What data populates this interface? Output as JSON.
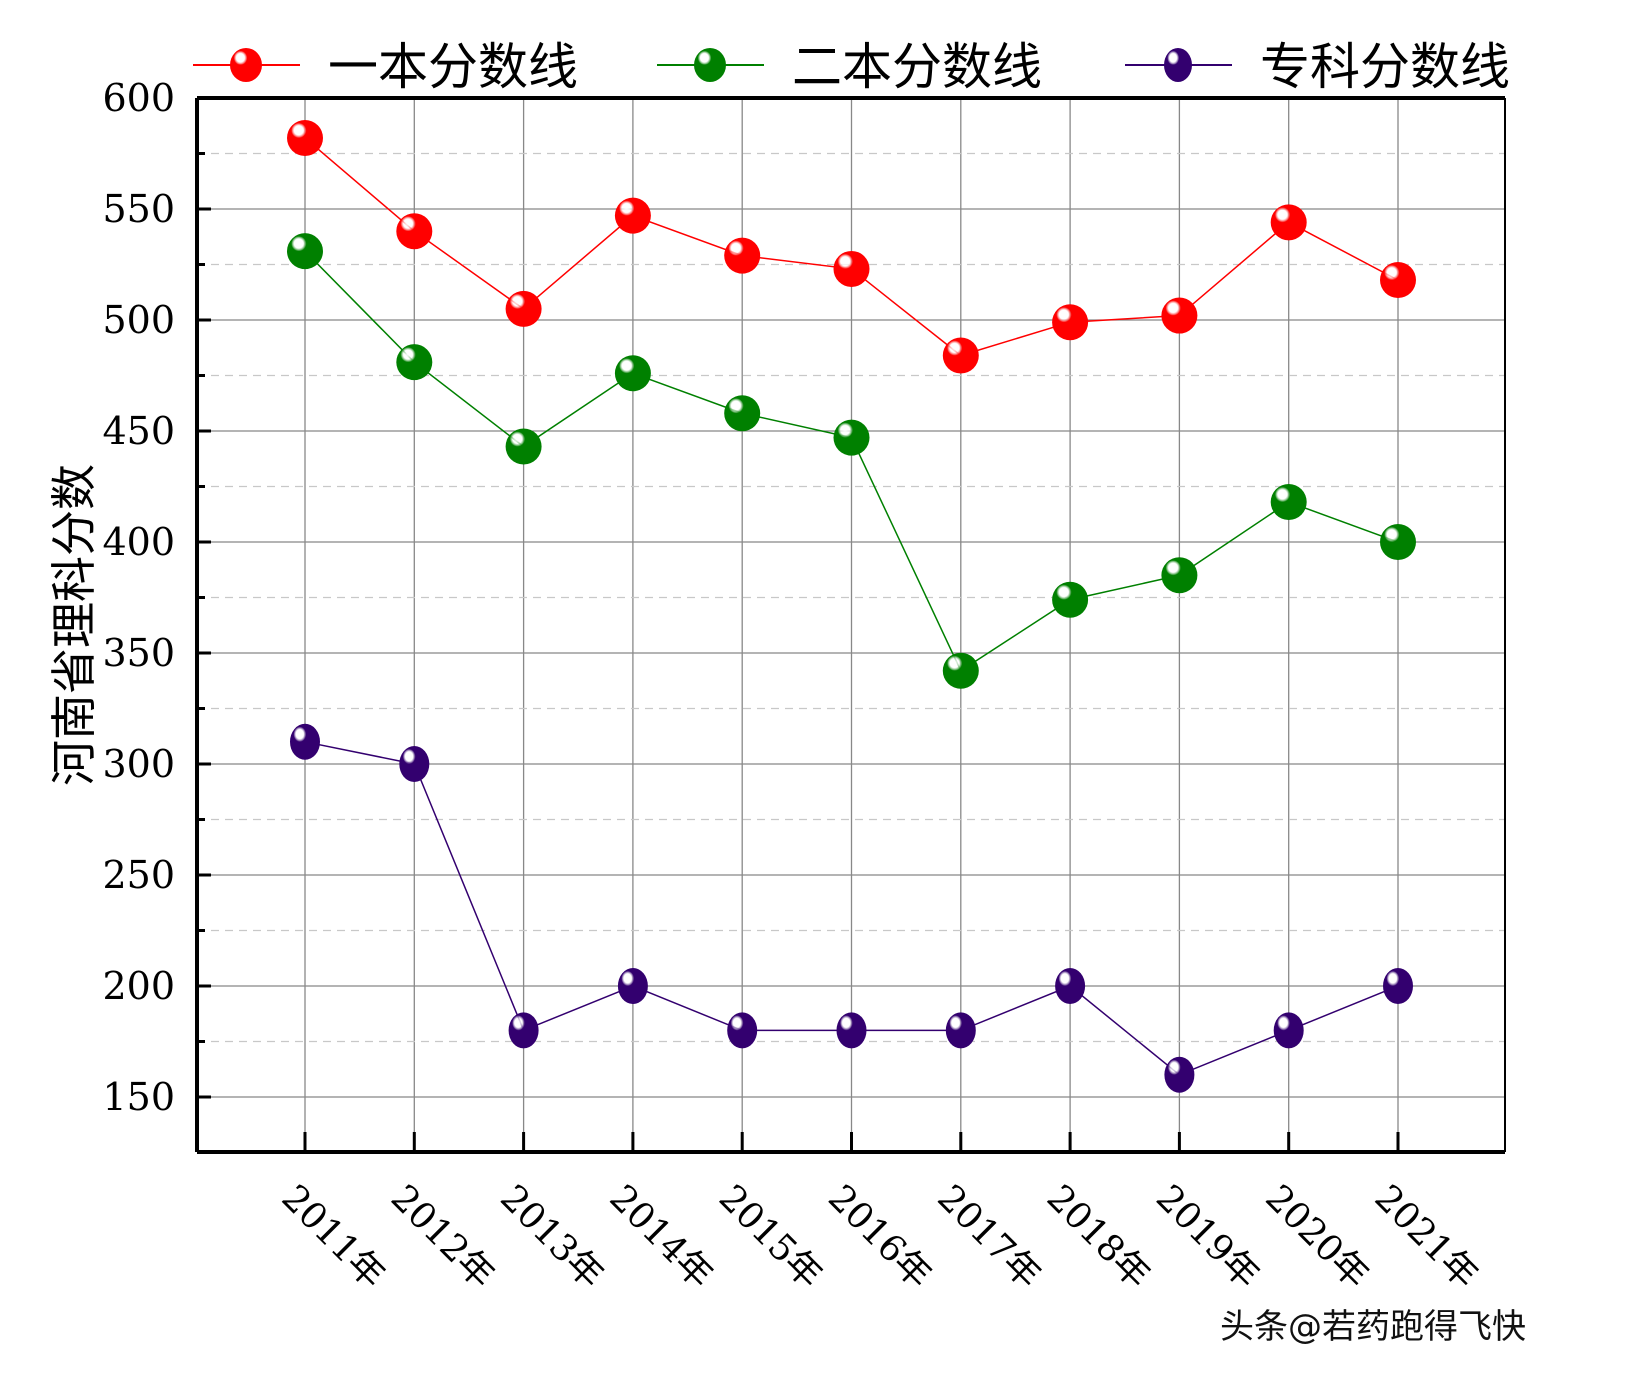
{
  "chart_data": {
    "type": "line",
    "title": "",
    "xlabel": "",
    "ylabel": "河南省理科分数",
    "categories": [
      "2011年",
      "2012年",
      "2013年",
      "2014年",
      "2015年",
      "2016年",
      "2017年",
      "2018年",
      "2019年",
      "2020年",
      "2021年"
    ],
    "series": [
      {
        "name": "一本分数线",
        "color": "#ff0000",
        "values": [
          582,
          540,
          505,
          547,
          529,
          523,
          484,
          499,
          502,
          544,
          518
        ]
      },
      {
        "name": "二本分数线",
        "color": "#008000",
        "values": [
          531,
          481,
          443,
          476,
          458,
          447,
          342,
          374,
          385,
          418,
          400
        ]
      },
      {
        "name": "专科分数线",
        "color": "#33006f",
        "values": [
          310,
          300,
          180,
          200,
          180,
          180,
          180,
          200,
          160,
          180,
          200
        ]
      }
    ],
    "yticks": [
      150,
      200,
      250,
      300,
      350,
      400,
      450,
      500,
      550,
      600
    ],
    "ylim": [
      125,
      600
    ],
    "grid": true,
    "legend_position": "top"
  },
  "watermark": "头条@若药跑得飞快"
}
